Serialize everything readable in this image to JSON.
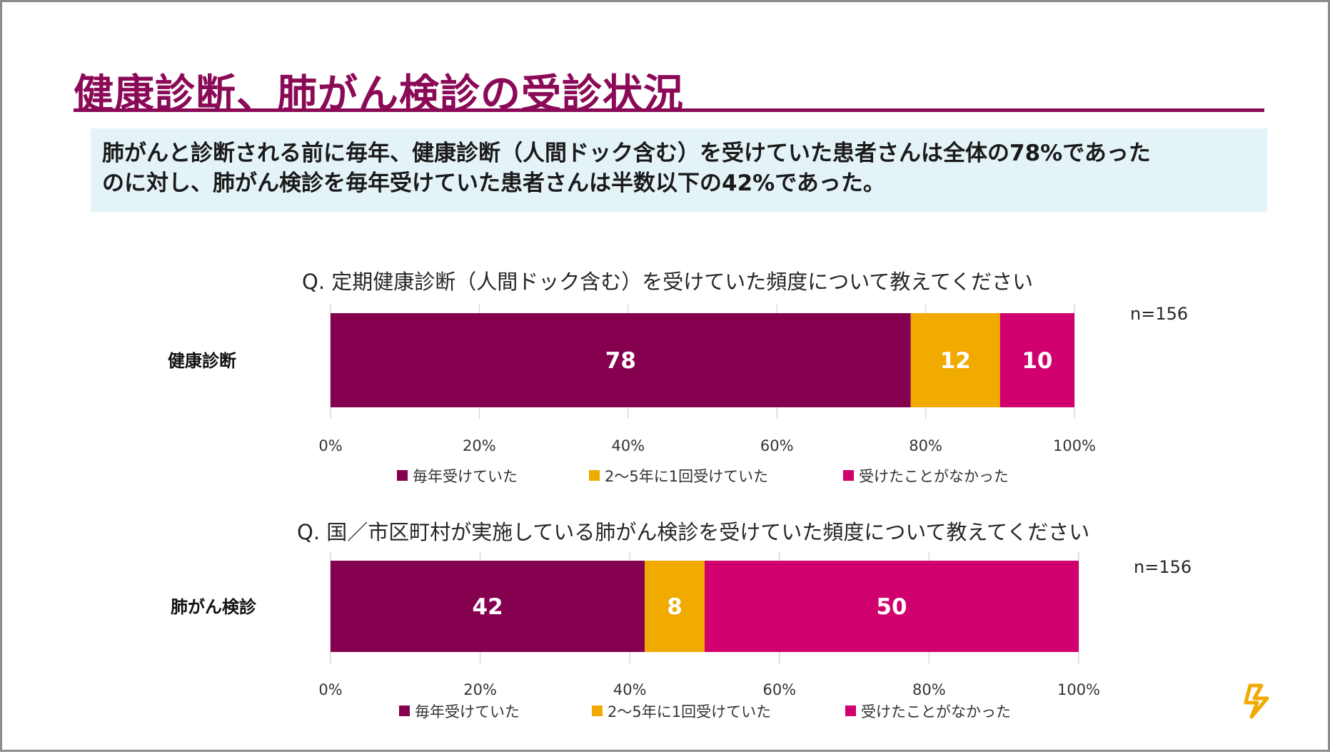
{
  "slide": {
    "title": "健康診断、肺がん検診の受診状況",
    "summary_line1": "肺がんと診断される前に毎年、健康診断（人間ドック含む）を受けていた患者さんは全体の78%であった",
    "summary_line2": "のに対し、肺がん検診を毎年受けていた患者さんは半数以下の42%であった。",
    "logo_icon": "astrazeneca-logo-icon"
  },
  "colors": {
    "title": "#8b0a57",
    "every_year": "#860050",
    "every_2_5_years": "#f0aa00",
    "never": "#d0006f",
    "summary_bg": "#e4f3f8"
  },
  "chart_data": [
    {
      "type": "bar",
      "orientation": "horizontal",
      "stacked": true,
      "title": "Q. 定期健康診断（人間ドック含む）を受けていた頻度について教えてください",
      "n_label": "n=156",
      "categories": [
        "健康診断"
      ],
      "series": [
        {
          "name": "毎年受けていた",
          "values": [
            78
          ]
        },
        {
          "name": "2～5年に1回受けていた",
          "values": [
            12
          ]
        },
        {
          "name": "受けたことがなかった",
          "values": [
            10
          ]
        }
      ],
      "xlim": [
        0,
        100
      ],
      "ticks": [
        "0%",
        "20%",
        "40%",
        "60%",
        "80%",
        "100%"
      ],
      "legend_position": "bottom"
    },
    {
      "type": "bar",
      "orientation": "horizontal",
      "stacked": true,
      "title": "Q. 国／市区町村が実施している肺がん検診を受けていた頻度について教えてください",
      "n_label": "n=156",
      "categories": [
        "肺がん検診"
      ],
      "series": [
        {
          "name": "毎年受けていた",
          "values": [
            42
          ]
        },
        {
          "name": "2～5年に1回受けていた",
          "values": [
            8
          ]
        },
        {
          "name": "受けたことがなかった",
          "values": [
            50
          ]
        }
      ],
      "xlim": [
        0,
        100
      ],
      "ticks": [
        "0%",
        "20%",
        "40%",
        "60%",
        "80%",
        "100%"
      ],
      "legend_position": "bottom"
    }
  ]
}
